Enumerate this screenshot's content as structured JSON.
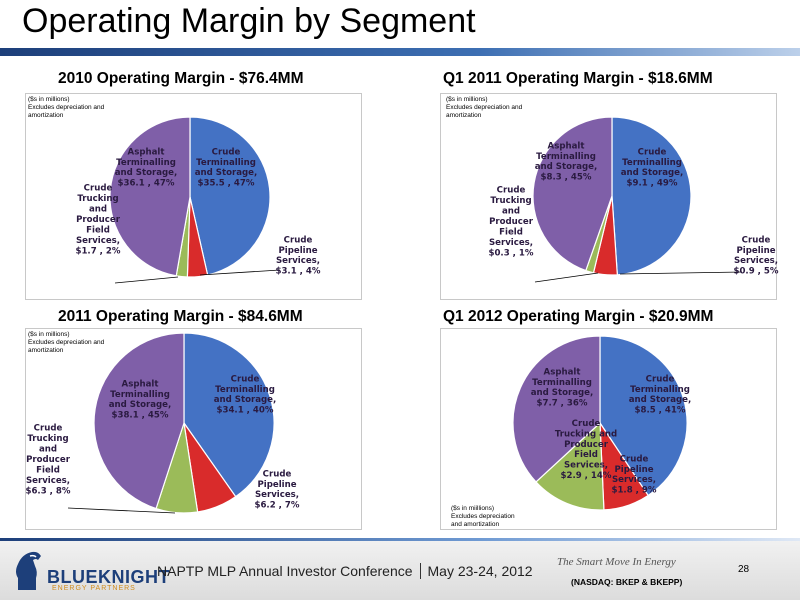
{
  "slide_title": "Operating Margin by Segment",
  "colors": {
    "crude_terminalling": "#4472C4",
    "crude_pipeline": "#D92B2B",
    "crude_trucking": "#9BBB59",
    "asphalt": "#7F5FA8",
    "label_dark": "#2a1a40",
    "label_light": "#ffffff"
  },
  "chart_data": [
    {
      "type": "pie",
      "title": "2010 Operating Margin - $76.4MM",
      "note": [
        "($s in millions)",
        "Excludes depreciation and",
        "amortization"
      ],
      "slices": [
        {
          "name": "Crude Terminalling and Storage",
          "value": 35.5,
          "percent": 47,
          "label": [
            "Crude",
            "Terminalling",
            "and Storage,",
            "$35.5 , 47%"
          ]
        },
        {
          "name": "Crude Pipeline Services",
          "value": 3.1,
          "percent": 4,
          "label": [
            "Crude",
            "Pipeline",
            "Services,",
            "$3.1 , 4%"
          ]
        },
        {
          "name": "Crude Trucking and Producer Field Services",
          "value": 1.7,
          "percent": 2,
          "label": [
            "Crude",
            "Trucking",
            "and",
            "Producer",
            "Field",
            "Services,",
            "$1.7 , 2%"
          ]
        },
        {
          "name": "Asphalt Terminalling and Storage",
          "value": 36.1,
          "percent": 47,
          "label": [
            "Asphalt",
            "Terminalling",
            "and Storage,",
            "$36.1 , 47%"
          ]
        }
      ]
    },
    {
      "type": "pie",
      "title": "Q1 2011 Operating Margin - $18.6MM",
      "note": [
        "($s in millions)",
        "Excludes depreciation and",
        "amortization"
      ],
      "slices": [
        {
          "name": "Crude Terminalling and Storage",
          "value": 9.1,
          "percent": 49,
          "label": [
            "Crude",
            "Terminalling",
            "and Storage,",
            "$9.1 , 49%"
          ]
        },
        {
          "name": "Crude Pipeline Services",
          "value": 0.9,
          "percent": 5,
          "label": [
            "Crude",
            "Pipeline",
            "Services,",
            "$0.9 , 5%"
          ]
        },
        {
          "name": "Crude Trucking and Producer Field Services",
          "value": 0.3,
          "percent": 1,
          "label": [
            "Crude",
            "Trucking",
            "and",
            "Producer",
            "Field",
            "Services,",
            "$0.3 , 1%"
          ]
        },
        {
          "name": "Asphalt Terminalling and Storage",
          "value": 8.3,
          "percent": 45,
          "label": [
            "Asphalt",
            "Terminalling",
            "and Storage,",
            "$8.3 , 45%"
          ]
        }
      ]
    },
    {
      "type": "pie",
      "title": "2011 Operating Margin - $84.6MM",
      "note": [
        "($s in millions)",
        "Excludes depreciation and",
        "amortization"
      ],
      "slices": [
        {
          "name": "Crude Terminalling and Storage",
          "value": 34.1,
          "percent": 40,
          "label": [
            "Crude",
            "Terminalling",
            "and Storage,",
            "$34.1 , 40%"
          ]
        },
        {
          "name": "Crude Pipeline Services",
          "value": 6.2,
          "percent": 7,
          "label": [
            "Crude",
            "Pipeline",
            "Services,",
            "$6.2 , 7%"
          ]
        },
        {
          "name": "Crude Trucking and Producer Field Services",
          "value": 6.3,
          "percent": 8,
          "label": [
            "Crude",
            "Trucking",
            "and",
            "Producer",
            "Field",
            "Services,",
            "$6.3 , 8%"
          ]
        },
        {
          "name": "Asphalt Terminalling and Storage",
          "value": 38.1,
          "percent": 45,
          "label": [
            "Asphalt",
            "Terminalling",
            "and Storage,",
            "$38.1 , 45%"
          ]
        }
      ]
    },
    {
      "type": "pie",
      "title": "Q1 2012 Operating Margin - $20.9MM",
      "note": [
        "($s in miillions)",
        "Excludes depreciation",
        "and amortization"
      ],
      "slices": [
        {
          "name": "Crude Terminalling and Storage",
          "value": 8.5,
          "percent": 41,
          "label": [
            "Crude",
            "Terminalling",
            "and Storage,",
            "$8.5 , 41%"
          ]
        },
        {
          "name": "Crude Pipeline Services",
          "value": 1.8,
          "percent": 9,
          "label": [
            "Crude",
            "Pipeline",
            "Services,",
            "$1.8 , 9%"
          ]
        },
        {
          "name": "Crude Trucking and Producer Field Services",
          "value": 2.9,
          "percent": 14,
          "label": [
            "Crude",
            "Trucking and",
            "Producer",
            "Field",
            "Services,",
            "$2.9 , 14%"
          ]
        },
        {
          "name": "Asphalt Terminalling and Storage",
          "value": 7.7,
          "percent": 36,
          "label": [
            "Asphalt",
            "Terminalling",
            "and Storage,",
            "$7.7 , 36%"
          ]
        }
      ]
    }
  ],
  "footer": {
    "company_name": "BLUEKNIGHT",
    "company_sub": "ENERGY PARTNERS",
    "conference": "NAPTP MLP Annual Investor Conference",
    "date": "May 23-24, 2012",
    "tagline": "The Smart Move In Energy",
    "ticker": "(NASDAQ: BKEP & BKEPP)",
    "page_number": "28"
  }
}
